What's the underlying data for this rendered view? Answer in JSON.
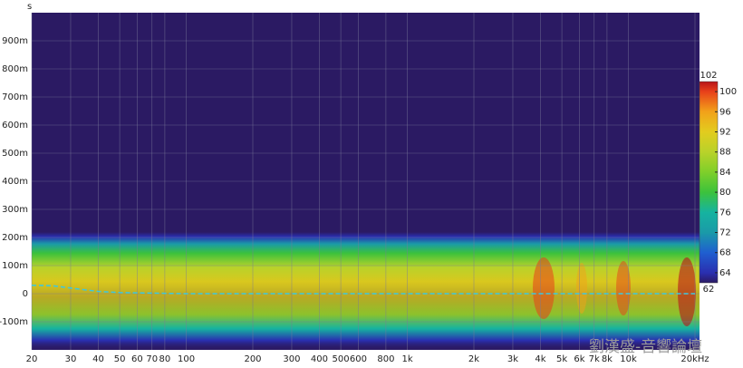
{
  "chart_data": {
    "type": "spectrogram",
    "y_unit": "s",
    "xscale": "log",
    "xlim": [
      20,
      20000
    ],
    "xticks": [
      {
        "value": 20,
        "label": "20"
      },
      {
        "value": 30,
        "label": "30"
      },
      {
        "value": 40,
        "label": "40"
      },
      {
        "value": 50,
        "label": "50"
      },
      {
        "value": 60,
        "label": "60"
      },
      {
        "value": 70,
        "label": "70"
      },
      {
        "value": 80,
        "label": "80"
      },
      {
        "value": 100,
        "label": "100"
      },
      {
        "value": 200,
        "label": "200"
      },
      {
        "value": 300,
        "label": "300"
      },
      {
        "value": 400,
        "label": "400"
      },
      {
        "value": 500,
        "label": "500"
      },
      {
        "value": 600,
        "label": "600"
      },
      {
        "value": 800,
        "label": "800"
      },
      {
        "value": 1000,
        "label": "1k"
      },
      {
        "value": 2000,
        "label": "2k"
      },
      {
        "value": 3000,
        "label": "3k"
      },
      {
        "value": 4000,
        "label": "4k"
      },
      {
        "value": 5000,
        "label": "5k"
      },
      {
        "value": 6000,
        "label": "6k"
      },
      {
        "value": 7000,
        "label": "7k"
      },
      {
        "value": 8000,
        "label": "8k"
      },
      {
        "value": 10000,
        "label": "10k"
      },
      {
        "value": 20000,
        "label": "20kHz"
      }
    ],
    "ylim": [
      -0.2,
      1.0
    ],
    "yticks": [
      {
        "value": -0.1,
        "label": "-100m"
      },
      {
        "value": 0,
        "label": "0"
      },
      {
        "value": 0.1,
        "label": "100m"
      },
      {
        "value": 0.2,
        "label": "200m"
      },
      {
        "value": 0.3,
        "label": "300m"
      },
      {
        "value": 0.4,
        "label": "400m"
      },
      {
        "value": 0.5,
        "label": "500m"
      },
      {
        "value": 0.6,
        "label": "600m"
      },
      {
        "value": 0.7,
        "label": "700m"
      },
      {
        "value": 0.8,
        "label": "800m"
      },
      {
        "value": 0.9,
        "label": "900m"
      }
    ],
    "grid": true,
    "background": "#2b1a63",
    "clim": [
      62,
      102
    ],
    "cticks": [
      64,
      68,
      72,
      76,
      80,
      84,
      88,
      92,
      96,
      100
    ],
    "colormap": {
      "values": [
        62,
        64,
        68,
        72,
        76,
        80,
        84,
        88,
        92,
        96,
        100,
        102
      ],
      "colors": [
        "#2b1a63",
        "#2a2fb0",
        "#1f5fd0",
        "#1a9aa8",
        "#16b3a0",
        "#3cc23c",
        "#7fcf2a",
        "#b9d22a",
        "#e2cc1e",
        "#f2a21a",
        "#e8401a",
        "#b8141a"
      ]
    },
    "series": [
      {
        "color": "#3cc8e0",
        "x": [
          20,
          25,
          30,
          40,
          50,
          70,
          100,
          1000,
          20000
        ],
        "values": [
          0.03,
          0.028,
          0.02,
          0.008,
          0.004,
          0.002,
          0,
          0,
          0
        ]
      }
    ],
    "watermark": "劉漢盛-音響論壇"
  }
}
